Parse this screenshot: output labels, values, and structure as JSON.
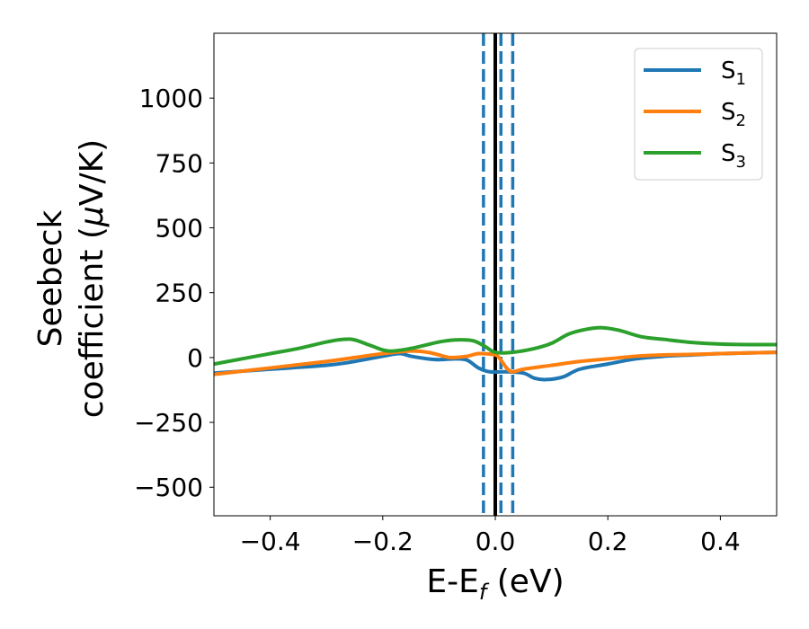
{
  "chart_data": {
    "type": "line",
    "title": "",
    "xlabel": {
      "base": "E-E",
      "sub": "f",
      "tail": " (eV)"
    },
    "ylabel": {
      "line1": "Seebeck",
      "line2_prefix": "coefficient  (",
      "mu": "μ",
      "line2_suffix": "V/K)"
    },
    "xlim": [
      -0.5,
      0.5
    ],
    "ylim": [
      -610,
      1250
    ],
    "xticks": [
      {
        "value": -0.4,
        "label": "−0.4"
      },
      {
        "value": -0.2,
        "label": "−0.2"
      },
      {
        "value": 0.0,
        "label": "0.0"
      },
      {
        "value": 0.2,
        "label": "0.2"
      },
      {
        "value": 0.4,
        "label": "0.4"
      }
    ],
    "yticks": [
      {
        "value": -500,
        "label": "−500"
      },
      {
        "value": -250,
        "label": "−250"
      },
      {
        "value": 0,
        "label": "0"
      },
      {
        "value": 250,
        "label": "250"
      },
      {
        "value": 500,
        "label": "500"
      },
      {
        "value": 750,
        "label": "750"
      },
      {
        "value": 1000,
        "label": "1000"
      }
    ],
    "grid": false,
    "legend_position": "top-right",
    "vlines": [
      {
        "x": 0.0,
        "color": "#000000",
        "style": "solid"
      },
      {
        "x": -0.021,
        "color": "#1f77b4",
        "style": "dashed"
      },
      {
        "x": 0.01,
        "color": "#1f77b4",
        "style": "dashed"
      },
      {
        "x": 0.031,
        "color": "#1f77b4",
        "style": "dashed"
      }
    ],
    "series": [
      {
        "name": "S",
        "sub": "1",
        "color": "#1f77b4",
        "points": [
          [
            -0.5,
            -60
          ],
          [
            -0.4,
            -45
          ],
          [
            -0.3,
            -30
          ],
          [
            -0.25,
            -15
          ],
          [
            -0.2,
            5
          ],
          [
            -0.17,
            15
          ],
          [
            -0.15,
            5
          ],
          [
            -0.12,
            -5
          ],
          [
            -0.1,
            -8
          ],
          [
            -0.07,
            -5
          ],
          [
            -0.05,
            -10
          ],
          [
            -0.03,
            -40
          ],
          [
            -0.01,
            -55
          ],
          [
            0.02,
            -55
          ],
          [
            0.05,
            -60
          ],
          [
            0.07,
            -80
          ],
          [
            0.09,
            -85
          ],
          [
            0.12,
            -75
          ],
          [
            0.15,
            -45
          ],
          [
            0.2,
            -25
          ],
          [
            0.25,
            -5
          ],
          [
            0.3,
            5
          ],
          [
            0.35,
            10
          ],
          [
            0.4,
            15
          ],
          [
            0.45,
            18
          ],
          [
            0.5,
            20
          ]
        ]
      },
      {
        "name": "S",
        "sub": "2",
        "color": "#ff7f0e",
        "points": [
          [
            -0.5,
            -65
          ],
          [
            -0.4,
            -40
          ],
          [
            -0.3,
            -15
          ],
          [
            -0.25,
            0
          ],
          [
            -0.2,
            15
          ],
          [
            -0.15,
            25
          ],
          [
            -0.12,
            20
          ],
          [
            -0.1,
            10
          ],
          [
            -0.08,
            0
          ],
          [
            -0.05,
            5
          ],
          [
            -0.03,
            15
          ],
          [
            0.0,
            10
          ],
          [
            0.01,
            -10
          ],
          [
            0.02,
            -40
          ],
          [
            0.03,
            -55
          ],
          [
            0.05,
            -45
          ],
          [
            0.1,
            -30
          ],
          [
            0.15,
            -15
          ],
          [
            0.2,
            -5
          ],
          [
            0.25,
            5
          ],
          [
            0.3,
            10
          ],
          [
            0.35,
            12
          ],
          [
            0.4,
            15
          ],
          [
            0.45,
            18
          ],
          [
            0.5,
            20
          ]
        ]
      },
      {
        "name": "S",
        "sub": "3",
        "color": "#2ca02c",
        "points": [
          [
            -0.5,
            -25
          ],
          [
            -0.45,
            -5
          ],
          [
            -0.4,
            15
          ],
          [
            -0.35,
            35
          ],
          [
            -0.3,
            60
          ],
          [
            -0.27,
            70
          ],
          [
            -0.25,
            68
          ],
          [
            -0.22,
            45
          ],
          [
            -0.19,
            25
          ],
          [
            -0.15,
            35
          ],
          [
            -0.1,
            60
          ],
          [
            -0.07,
            68
          ],
          [
            -0.04,
            65
          ],
          [
            -0.02,
            45
          ],
          [
            0.0,
            20
          ],
          [
            0.03,
            20
          ],
          [
            0.07,
            35
          ],
          [
            0.1,
            55
          ],
          [
            0.13,
            90
          ],
          [
            0.16,
            108
          ],
          [
            0.19,
            115
          ],
          [
            0.22,
            105
          ],
          [
            0.26,
            80
          ],
          [
            0.3,
            70
          ],
          [
            0.35,
            58
          ],
          [
            0.4,
            52
          ],
          [
            0.45,
            50
          ],
          [
            0.5,
            50
          ]
        ]
      }
    ]
  }
}
